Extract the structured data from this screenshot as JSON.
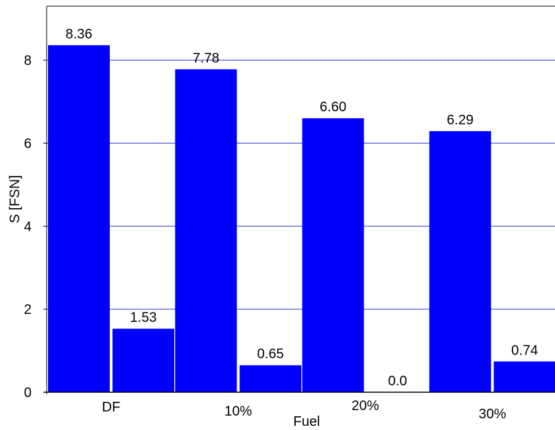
{
  "chart_data": {
    "type": "bar",
    "title": "",
    "xlabel": "Fuel",
    "ylabel": "S [FSN]",
    "categories": [
      "DF",
      "10%",
      "20%",
      "30%"
    ],
    "series": [
      {
        "values": [
          8.36,
          7.78,
          6.6,
          6.29
        ]
      },
      {
        "values": [
          1.53,
          0.65,
          0.0,
          0.74
        ]
      }
    ],
    "value_labels": [
      [
        "8.36",
        "7.78",
        "6.60",
        "6.29"
      ],
      [
        "1.53",
        "0.65",
        "0.0",
        "0.74"
      ]
    ],
    "yticks": [
      0,
      2,
      4,
      6,
      8
    ],
    "ylim": [
      0,
      9.3
    ],
    "grid": true,
    "legend": "none",
    "colors": {
      "bar": "#0000ff",
      "grid": "#3333cc",
      "axis": "#000000",
      "text": "#000000"
    }
  }
}
